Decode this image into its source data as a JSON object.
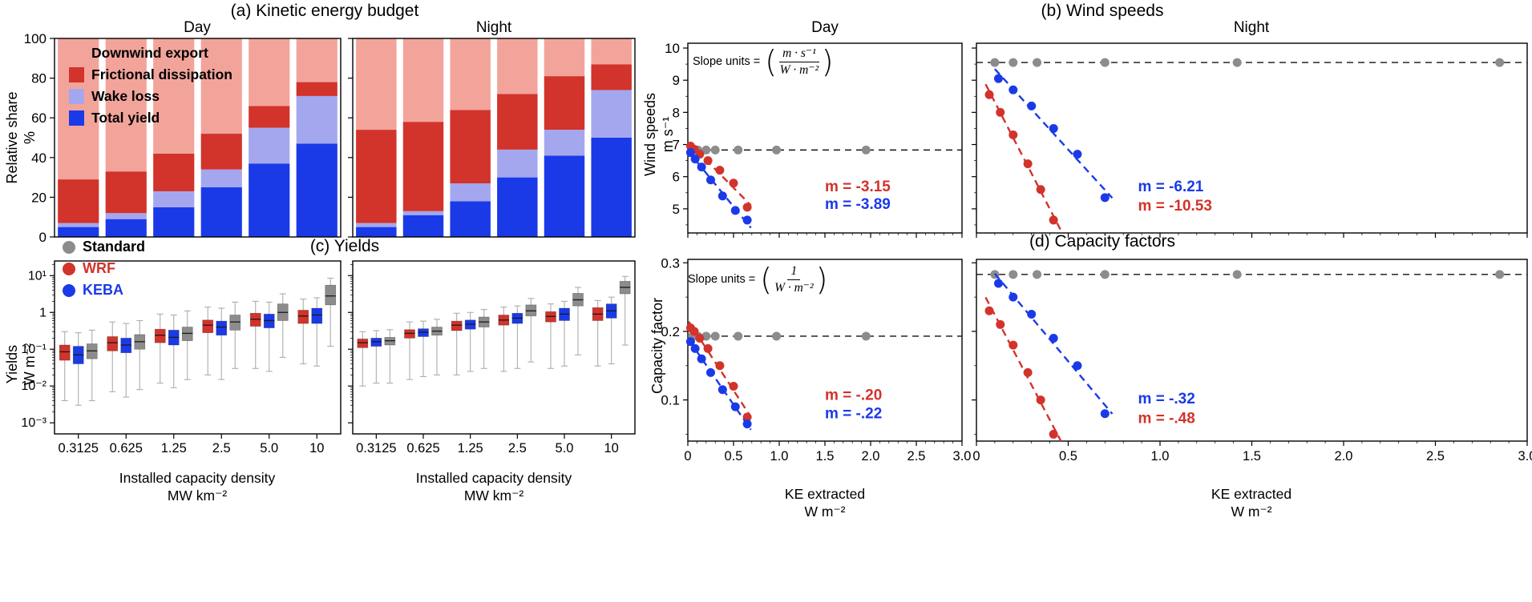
{
  "colors": {
    "export": "#F2A49B",
    "friction": "#D2332B",
    "wake": "#A5A7EE",
    "yield": "#1A3AE8",
    "standard": "#8C8C8C",
    "wrf": "#D2332B",
    "keba": "#1A3AE8",
    "whisker": "#ADADAD"
  },
  "chart_data": [
    {
      "id": "a",
      "type": "bar",
      "stacked": true,
      "title": "(a) Kinetic energy budget",
      "ylabel_line1": "Relative share",
      "ylabel_line2": "%",
      "ylim": [
        0,
        100
      ],
      "yticks": [
        0,
        20,
        40,
        60,
        80,
        100
      ],
      "categories": [
        "0.3125",
        "0.625",
        "1.25",
        "2.5",
        "5.0",
        "10"
      ],
      "stack_order": [
        "yield",
        "wake",
        "friction",
        "export"
      ],
      "legend": [
        {
          "label": "Downwind export",
          "marker": "#F2A49B"
        },
        {
          "label": "Frictional dissipation",
          "marker": "#D2332B"
        },
        {
          "label": "Wake loss",
          "marker": "#A5A7EE"
        },
        {
          "label": "Total yield",
          "marker": "#1A3AE8"
        }
      ],
      "subplots": [
        {
          "id": "day",
          "label": "Day",
          "series": {
            "yield": [
              5,
              9,
              15,
              25,
              37,
              47
            ],
            "wake": [
              2,
              3,
              8,
              9,
              18,
              24
            ],
            "friction": [
              22,
              21,
              19,
              18,
              11,
              7
            ],
            "export": [
              71,
              67,
              58,
              48,
              34,
              22
            ]
          }
        },
        {
          "id": "night",
          "label": "Night",
          "series": {
            "yield": [
              5,
              11,
              18,
              30,
              41,
              50
            ],
            "wake": [
              2,
              2,
              9,
              14,
              13,
              24
            ],
            "friction": [
              47,
              45,
              37,
              28,
              27,
              13
            ],
            "export": [
              46,
              42,
              36,
              28,
              19,
              13
            ]
          }
        }
      ]
    },
    {
      "id": "b",
      "type": "scatter",
      "title": "(b) Wind speeds",
      "ylabel_line1": "Wind speeds",
      "ylabel_line2": "m s⁻¹",
      "xlim": [
        0,
        3
      ],
      "ylim": [
        4.25,
        10.15
      ],
      "xticks": [
        0,
        0.5,
        1,
        1.5,
        2,
        2.5,
        3
      ],
      "xtick_labels": [
        "0",
        "0.5",
        "1.0",
        "1.5",
        "2.0",
        "2.5",
        "3.0"
      ],
      "show_xtick_labels": false,
      "yticks": [
        5,
        6,
        7,
        8,
        9,
        10
      ],
      "ytick_labels": [
        "5",
        "6",
        "7",
        "8",
        "9",
        "10"
      ],
      "yminor": [
        4.5,
        5.5,
        6.5,
        7.5,
        8.5,
        9.5
      ],
      "slope_units": {
        "prefix": "Slope units =",
        "open": "(",
        "numerator": "m · s⁻¹",
        "denominator": "W · m⁻²",
        "close": ")"
      },
      "subplots": [
        {
          "id": "day",
          "label": "Day",
          "gray_y": 6.83,
          "gray_x": [
            0.05,
            0.11,
            0.2,
            0.3,
            0.55,
            0.97,
            1.95
          ],
          "wrf_points": [
            [
              0.03,
              6.95
            ],
            [
              0.07,
              6.85
            ],
            [
              0.13,
              6.7
            ],
            [
              0.22,
              6.5
            ],
            [
              0.35,
              6.2
            ],
            [
              0.5,
              5.8
            ],
            [
              0.65,
              5.05
            ]
          ],
          "keba_points": [
            [
              0.03,
              6.75
            ],
            [
              0.08,
              6.55
            ],
            [
              0.15,
              6.3
            ],
            [
              0.25,
              5.9
            ],
            [
              0.38,
              5.4
            ],
            [
              0.52,
              4.95
            ],
            [
              0.65,
              4.65
            ]
          ],
          "labels": [
            {
              "series": "wrf",
              "text": "m = -3.15",
              "x": 1.5,
              "y": 5.55
            },
            {
              "series": "keba",
              "text": "m = -3.89",
              "x": 1.5,
              "y": 5.0
            }
          ]
        },
        {
          "id": "night",
          "label": "Night",
          "gray_y": 9.55,
          "gray_x": [
            0.1,
            0.2,
            0.33,
            0.7,
            1.42,
            2.85
          ],
          "keba_points": [
            [
              0.12,
              9.05
            ],
            [
              0.2,
              8.7
            ],
            [
              0.3,
              8.2
            ],
            [
              0.42,
              7.5
            ],
            [
              0.55,
              6.7
            ],
            [
              0.7,
              5.35
            ]
          ],
          "wrf_points": [
            [
              0.07,
              8.55
            ],
            [
              0.13,
              8.0
            ],
            [
              0.2,
              7.3
            ],
            [
              0.28,
              6.4
            ],
            [
              0.35,
              5.6
            ],
            [
              0.42,
              4.65
            ]
          ],
          "labels": [
            {
              "series": "keba",
              "text": "m = -6.21",
              "x": 0.88,
              "y": 5.55
            },
            {
              "series": "wrf",
              "text": "m = -10.53",
              "x": 0.88,
              "y": 4.95
            }
          ]
        }
      ]
    },
    {
      "id": "c",
      "type": "box",
      "title": "(c) Yields",
      "ylabel_line1": "Yields",
      "ylabel_line2": "W m⁻²",
      "xlabel_line1": "Installed capacity density",
      "xlabel_line2": "MW km⁻²",
      "ylog": true,
      "ylim": [
        0.0005,
        25
      ],
      "yticks": [
        0.001,
        0.01,
        0.1,
        1,
        10
      ],
      "ytick_labels": [
        "10⁻³",
        "10⁻²",
        "10⁻¹",
        "1",
        "10¹"
      ],
      "categories": [
        "0.3125",
        "0.625",
        "1.25",
        "2.5",
        "5.0",
        "10"
      ],
      "legend": [
        {
          "label": "Standard",
          "marker": "#8C8C8C",
          "text": "#000000"
        },
        {
          "label": "WRF",
          "marker": "#D2332B",
          "text": "#D2332B"
        },
        {
          "label": "KEBA",
          "marker": "#1A3AE8",
          "text": "#1A3AE8"
        }
      ],
      "box_order": [
        "wrf",
        "keba",
        "std"
      ],
      "subplots": [
        {
          "id": "day",
          "label": "Day",
          "groups": [
            {
              "wrf": [
                0.004,
                0.05,
                0.085,
                0.13,
                0.3
              ],
              "keba": [
                0.003,
                0.04,
                0.07,
                0.12,
                0.28
              ],
              "std": [
                0.004,
                0.055,
                0.09,
                0.14,
                0.33
              ]
            },
            {
              "wrf": [
                0.007,
                0.09,
                0.15,
                0.22,
                0.55
              ],
              "keba": [
                0.005,
                0.08,
                0.13,
                0.2,
                0.5
              ],
              "std": [
                0.008,
                0.1,
                0.16,
                0.25,
                0.6
              ]
            },
            {
              "wrf": [
                0.012,
                0.15,
                0.24,
                0.35,
                0.9
              ],
              "keba": [
                0.009,
                0.13,
                0.21,
                0.33,
                0.85
              ],
              "std": [
                0.015,
                0.17,
                0.27,
                0.4,
                1.1
              ]
            },
            {
              "wrf": [
                0.02,
                0.28,
                0.45,
                0.62,
                1.4
              ],
              "keba": [
                0.015,
                0.24,
                0.4,
                0.58,
                1.3
              ],
              "std": [
                0.03,
                0.33,
                0.55,
                0.85,
                1.9
              ]
            },
            {
              "wrf": [
                0.03,
                0.42,
                0.65,
                0.95,
                2.0
              ],
              "keba": [
                0.025,
                0.38,
                0.6,
                0.9,
                1.9
              ],
              "std": [
                0.06,
                0.6,
                1.0,
                1.7,
                3.2
              ]
            },
            {
              "wrf": [
                0.04,
                0.5,
                0.8,
                1.15,
                2.3
              ],
              "keba": [
                0.035,
                0.5,
                0.85,
                1.3,
                2.5
              ],
              "std": [
                0.12,
                1.6,
                2.8,
                5.5,
                8.5
              ]
            }
          ]
        },
        {
          "id": "night",
          "label": "Night",
          "groups": [
            {
              "wrf": [
                0.01,
                0.11,
                0.15,
                0.19,
                0.3
              ],
              "keba": [
                0.012,
                0.12,
                0.16,
                0.2,
                0.32
              ],
              "std": [
                0.012,
                0.13,
                0.17,
                0.21,
                0.34
              ]
            },
            {
              "wrf": [
                0.015,
                0.2,
                0.27,
                0.34,
                0.55
              ],
              "keba": [
                0.018,
                0.22,
                0.29,
                0.36,
                0.58
              ],
              "std": [
                0.02,
                0.24,
                0.31,
                0.4,
                0.65
              ]
            },
            {
              "wrf": [
                0.02,
                0.32,
                0.45,
                0.58,
                0.95
              ],
              "keba": [
                0.025,
                0.35,
                0.48,
                0.62,
                1.0
              ],
              "std": [
                0.03,
                0.4,
                0.55,
                0.75,
                1.2
              ]
            },
            {
              "wrf": [
                0.025,
                0.45,
                0.62,
                0.85,
                1.4
              ],
              "keba": [
                0.03,
                0.5,
                0.7,
                0.95,
                1.5
              ],
              "std": [
                0.045,
                0.8,
                1.1,
                1.6,
                2.4
              ]
            },
            {
              "wrf": [
                0.03,
                0.55,
                0.78,
                1.05,
                1.7
              ],
              "keba": [
                0.035,
                0.6,
                0.9,
                1.3,
                2.0
              ],
              "std": [
                0.07,
                1.5,
                2.2,
                3.3,
                4.8
              ]
            },
            {
              "wrf": [
                0.035,
                0.6,
                0.9,
                1.35,
                2.1
              ],
              "keba": [
                0.04,
                0.7,
                1.1,
                1.7,
                2.6
              ],
              "std": [
                0.13,
                3.2,
                4.8,
                7.0,
                9.5
              ]
            }
          ]
        }
      ]
    },
    {
      "id": "d",
      "type": "scatter",
      "title": "(d) Capacity factors",
      "ylabel_line1": "Capacity factor",
      "xlabel_line1": "KE extracted",
      "xlabel_line2": "W m⁻²",
      "xlim": [
        0,
        3
      ],
      "ylim": [
        0.04,
        0.305
      ],
      "xticks": [
        0,
        0.5,
        1,
        1.5,
        2,
        2.5,
        3
      ],
      "xtick_labels": [
        "0",
        "0.5",
        "1.0",
        "1.5",
        "2.0",
        "2.5",
        "3.0"
      ],
      "show_xtick_labels": true,
      "yticks": [
        0.1,
        0.2,
        0.3
      ],
      "ytick_labels": [
        "0.1",
        "0.2",
        "0.3"
      ],
      "yminor": [
        0.05,
        0.15,
        0.25
      ],
      "slope_units": {
        "prefix": "Slope units =",
        "open": "(",
        "numerator": "1",
        "denominator": "W · m⁻²",
        "close": ")"
      },
      "subplots": [
        {
          "id": "day",
          "label": "Day",
          "gray_y": 0.193,
          "gray_x": [
            0.05,
            0.11,
            0.2,
            0.3,
            0.55,
            0.97,
            1.95
          ],
          "wrf_points": [
            [
              0.03,
              0.205
            ],
            [
              0.07,
              0.2
            ],
            [
              0.13,
              0.19
            ],
            [
              0.22,
              0.175
            ],
            [
              0.35,
              0.15
            ],
            [
              0.5,
              0.12
            ],
            [
              0.65,
              0.075
            ]
          ],
          "keba_points": [
            [
              0.03,
              0.185
            ],
            [
              0.08,
              0.175
            ],
            [
              0.15,
              0.16
            ],
            [
              0.25,
              0.14
            ],
            [
              0.38,
              0.115
            ],
            [
              0.52,
              0.09
            ],
            [
              0.65,
              0.065
            ]
          ],
          "labels": [
            {
              "series": "wrf",
              "text": "m = -.20",
              "x": 1.5,
              "y": 0.1
            },
            {
              "series": "keba",
              "text": "m = -.22",
              "x": 1.5,
              "y": 0.073
            }
          ]
        },
        {
          "id": "night",
          "label": "Night",
          "gray_y": 0.283,
          "gray_x": [
            0.1,
            0.2,
            0.33,
            0.7,
            1.42,
            2.85
          ],
          "keba_points": [
            [
              0.12,
              0.27
            ],
            [
              0.2,
              0.25
            ],
            [
              0.3,
              0.225
            ],
            [
              0.42,
              0.19
            ],
            [
              0.55,
              0.15
            ],
            [
              0.7,
              0.08
            ]
          ],
          "wrf_points": [
            [
              0.07,
              0.23
            ],
            [
              0.13,
              0.21
            ],
            [
              0.2,
              0.18
            ],
            [
              0.28,
              0.14
            ],
            [
              0.35,
              0.1
            ],
            [
              0.42,
              0.05
            ]
          ],
          "labels": [
            {
              "series": "keba",
              "text": "m = -.32",
              "x": 0.88,
              "y": 0.095
            },
            {
              "series": "wrf",
              "text": "m = -.48",
              "x": 0.88,
              "y": 0.066
            }
          ]
        }
      ]
    }
  ]
}
